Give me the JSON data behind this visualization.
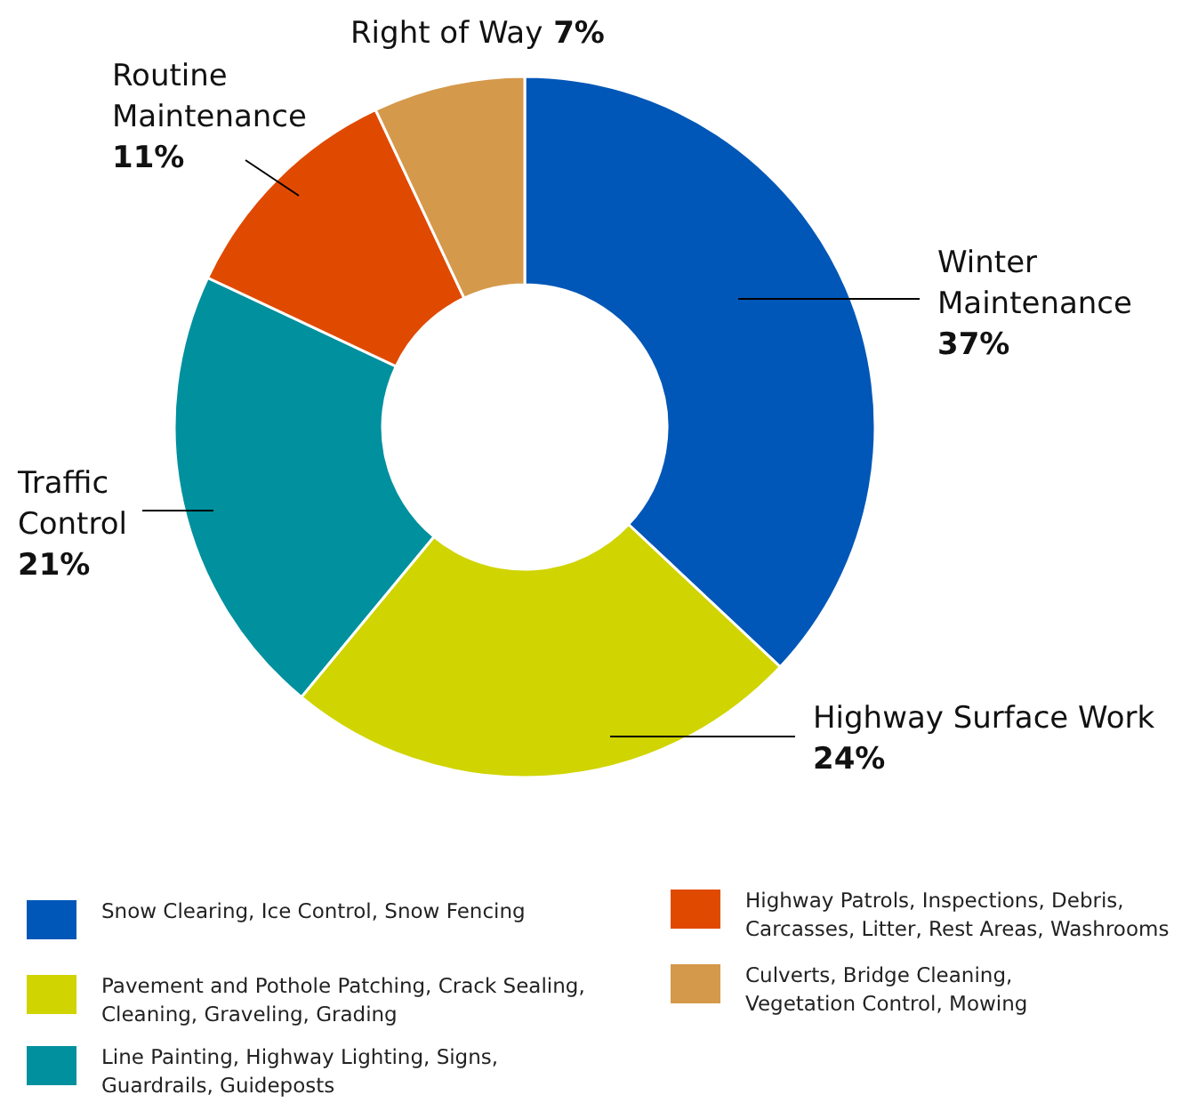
{
  "chart_data": {
    "type": "donut",
    "categories": [
      "Winter Maintenance",
      "Highway Surface Work",
      "Traffic Control",
      "Routine Maintenance",
      "Right of Way"
    ],
    "values": [
      37,
      24,
      21,
      11,
      7
    ],
    "colors": [
      "#0057b8",
      "#d0d400",
      "#00909e",
      "#e04a00",
      "#d4994a"
    ],
    "value_labels": [
      "37%",
      "24%",
      "21%",
      "11%",
      "7%"
    ],
    "annotations": [
      "Snow Clearing, Ice Control, Snow Fencing",
      "Pavement and Pothole Patching, Crack Sealing, Cleaning, Graveling, Grading",
      "Line Painting, Highway Lighting, Signs, Guardrails, Guideposts",
      "Highway Patrols, Inspections, Debris, Carcasses, Litter, Rest Areas, Washrooms",
      "Culverts, Bridge Cleaning, Vegetation Control, Mowing"
    ]
  }
}
